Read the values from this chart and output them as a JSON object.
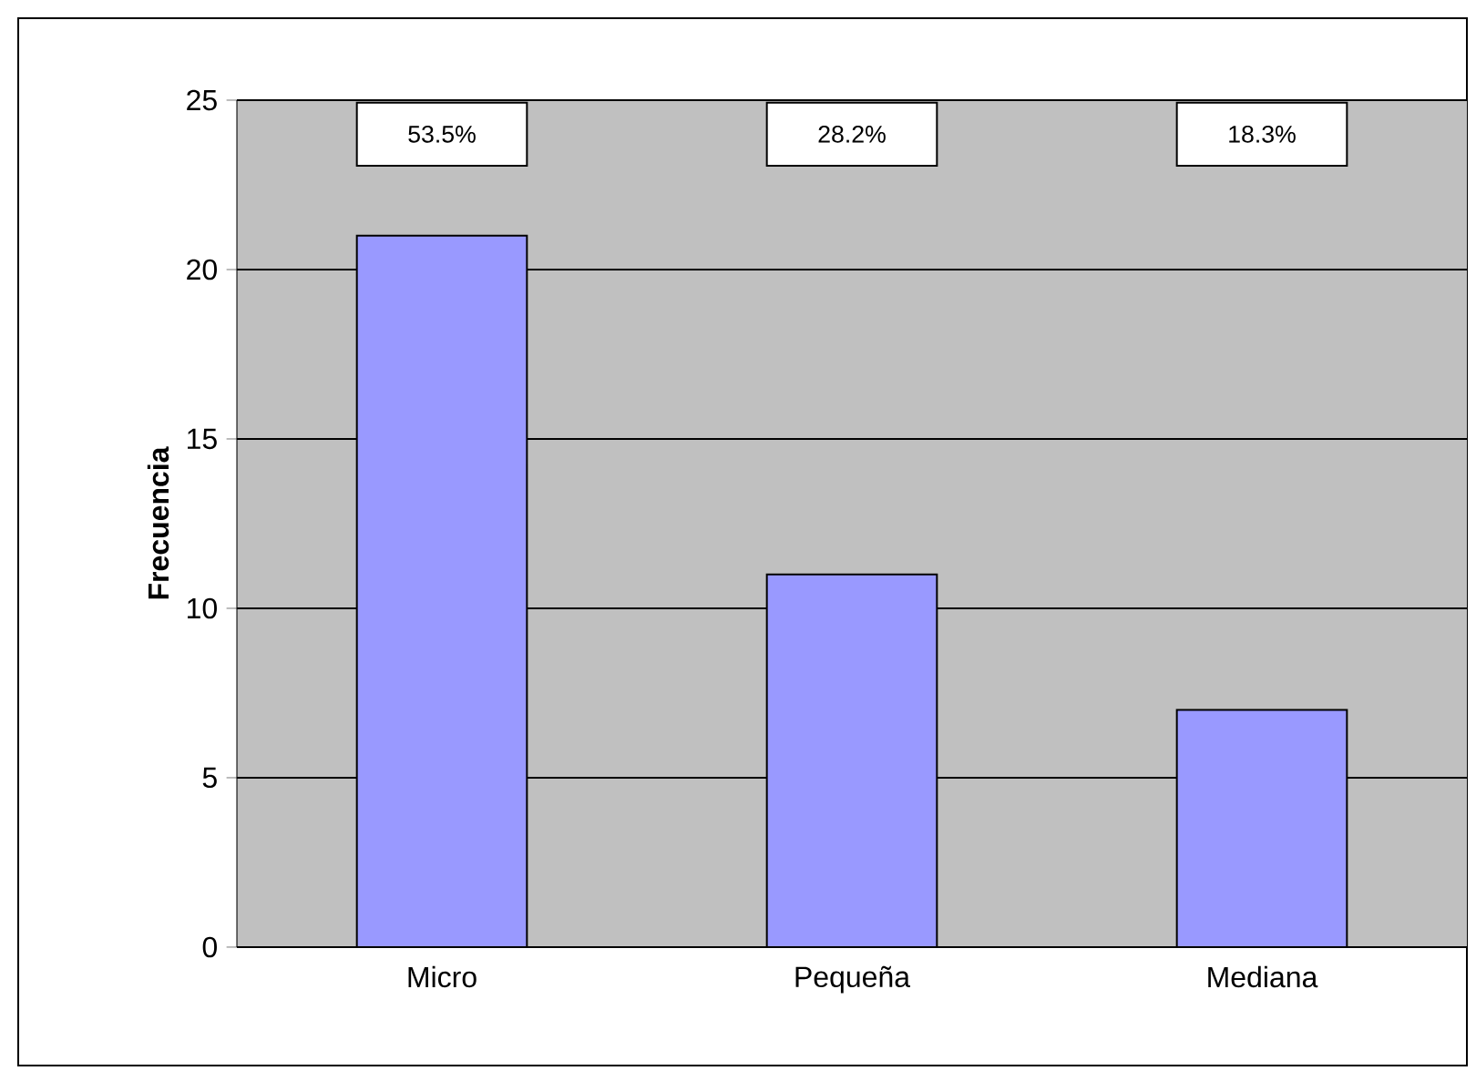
{
  "chart_data": {
    "type": "bar",
    "ylabel": "Frecuencia",
    "categories": [
      "Micro",
      "Pequeña",
      "Mediana"
    ],
    "values": [
      21,
      11,
      7
    ],
    "color": "#9999ff",
    "ylim": [
      0,
      25
    ],
    "yticks": [
      0,
      5,
      10,
      15,
      20,
      25
    ],
    "grid": "y",
    "annotations": [
      "53.5%",
      "28.2%",
      "18.3%"
    ]
  }
}
